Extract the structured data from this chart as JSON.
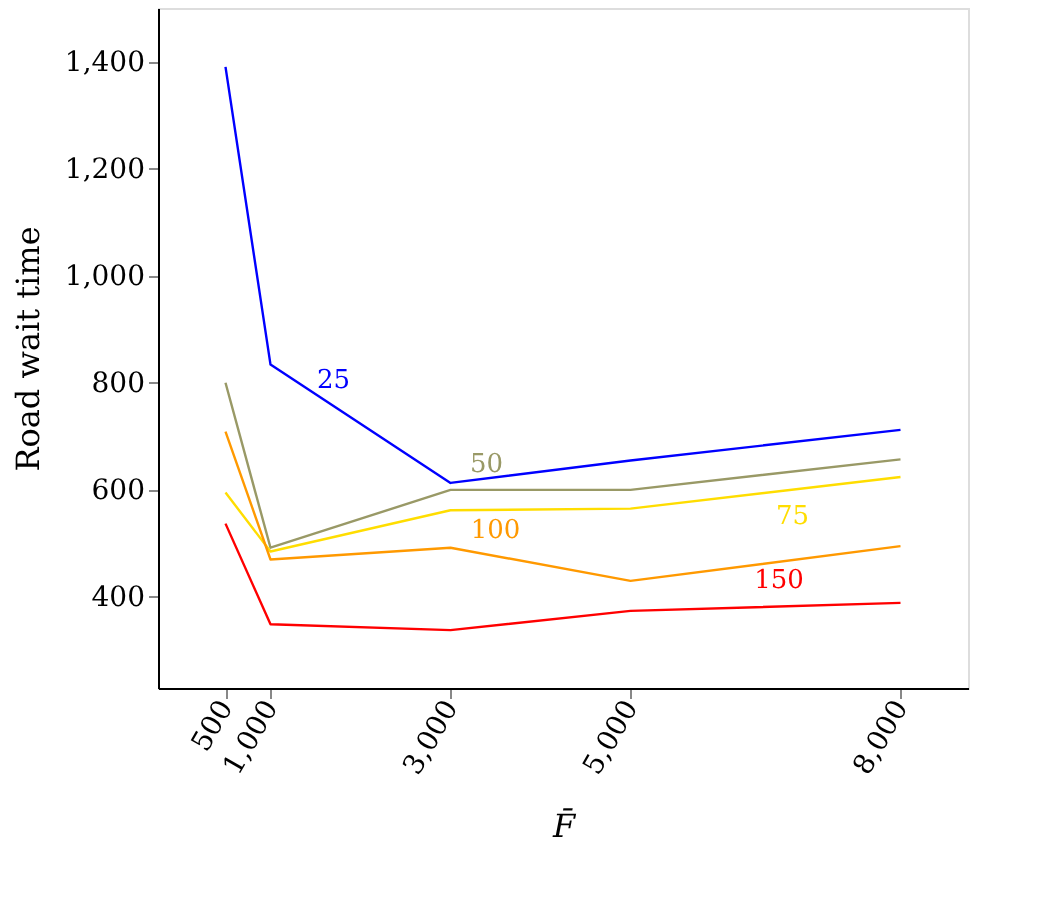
{
  "chart_data": {
    "type": "line",
    "xlabel": "F̄",
    "ylabel": "Road wait time",
    "x": [
      500,
      1000,
      3000,
      5000,
      8000
    ],
    "xlim": [
      -250,
      8750
    ],
    "ylim": [
      230,
      1500
    ],
    "xticks": [
      {
        "value": 500,
        "label": "500"
      },
      {
        "value": 1000,
        "label": "1,000"
      },
      {
        "value": 3000,
        "label": "3,000"
      },
      {
        "value": 5000,
        "label": "5,000"
      },
      {
        "value": 8000,
        "label": "8,000"
      }
    ],
    "yticks": [
      {
        "value": 400,
        "label": "400"
      },
      {
        "value": 600,
        "label": "600"
      },
      {
        "value": 800,
        "label": "800"
      },
      {
        "value": 1000,
        "label": "1,000"
      },
      {
        "value": 1200,
        "label": "1,200"
      },
      {
        "value": 1400,
        "label": "1,400"
      }
    ],
    "grid": false,
    "legend": false,
    "marker": "none",
    "line_style": "solid",
    "series": [
      {
        "name": "25",
        "color": "#0000ff",
        "values": [
          1390,
          834,
          613,
          655,
          712
        ]
      },
      {
        "name": "50",
        "color": "#999966",
        "values": [
          800,
          492,
          600,
          600,
          657
        ]
      },
      {
        "name": "75",
        "color": "#ffdd00",
        "values": [
          595,
          485,
          562,
          565,
          624
        ]
      },
      {
        "name": "100",
        "color": "#ff9900",
        "values": [
          709,
          470,
          492,
          430,
          495
        ]
      },
      {
        "name": "150",
        "color": "#ff0000",
        "values": [
          537,
          349,
          338,
          374,
          389
        ]
      }
    ]
  }
}
